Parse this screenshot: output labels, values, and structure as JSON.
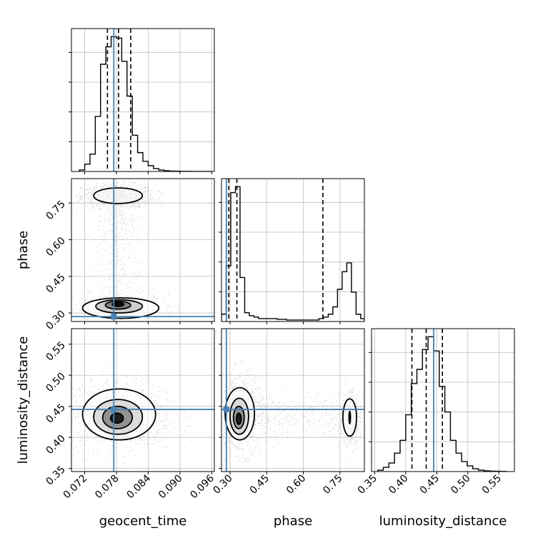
{
  "chart_data": {
    "type": "corner",
    "parameters": [
      "geocent_time",
      "phase",
      "luminosity_distance"
    ],
    "xlabels": [
      "geocent_time",
      "phase",
      "luminosity_distance"
    ],
    "ylabels": [
      "",
      "phase",
      "luminosity_distance"
    ],
    "ranges": {
      "geocent_time": [
        0.0695,
        0.0965
      ],
      "phase": [
        0.265,
        0.85
      ],
      "luminosity_distance": [
        0.345,
        0.575
      ]
    },
    "ticks": {
      "geocent_time": [
        "0.072",
        "0.078",
        "0.084",
        "0.090",
        "0.096"
      ],
      "phase": [
        "0.30",
        "0.45",
        "0.60",
        "0.75"
      ],
      "luminosity_distance": [
        "0.35",
        "0.40",
        "0.45",
        "0.50",
        "0.55"
      ]
    },
    "injection": {
      "geocent_time": 0.0775,
      "phase": 0.285,
      "luminosity_distance": 0.445
    },
    "quantiles": {
      "geocent_time": [
        0.0763,
        0.0784,
        0.0807
      ],
      "phase": [
        0.295,
        0.328,
        0.68
      ],
      "luminosity_distance": [
        0.41,
        0.433,
        0.459
      ]
    },
    "histograms": {
      "geocent_time": {
        "edges": [
          0.071,
          0.072,
          0.073,
          0.074,
          0.075,
          0.076,
          0.077,
          0.078,
          0.079,
          0.08,
          0.081,
          0.082,
          0.083,
          0.084,
          0.085,
          0.086,
          0.087,
          0.088,
          0.089,
          0.09,
          0.091,
          0.092,
          0.093,
          0.094,
          0.095,
          0.096
        ],
        "counts": [
          0.01,
          0.05,
          0.12,
          0.38,
          0.74,
          0.86,
          0.93,
          0.92,
          0.76,
          0.52,
          0.25,
          0.13,
          0.07,
          0.04,
          0.02,
          0.01,
          0.005,
          0.003,
          0.002,
          0.001,
          0.001,
          0,
          0,
          0,
          0
        ]
      },
      "phase": {
        "edges": [
          0.265,
          0.284,
          0.303,
          0.322,
          0.341,
          0.36,
          0.379,
          0.398,
          0.417,
          0.436,
          0.455,
          0.474,
          0.493,
          0.512,
          0.531,
          0.55,
          0.569,
          0.588,
          0.607,
          0.626,
          0.645,
          0.664,
          0.683,
          0.702,
          0.721,
          0.74,
          0.759,
          0.778,
          0.797,
          0.816,
          0.835,
          0.85
        ],
        "counts": [
          0.05,
          0.38,
          0.88,
          0.92,
          0.3,
          0.06,
          0.04,
          0.03,
          0.02,
          0.02,
          0.02,
          0.02,
          0.015,
          0.015,
          0.01,
          0.01,
          0.01,
          0.01,
          0.01,
          0.01,
          0.01,
          0.02,
          0.03,
          0.05,
          0.1,
          0.22,
          0.34,
          0.4,
          0.2,
          0.05,
          0.02
        ]
      },
      "luminosity_distance": {
        "edges": [
          0.355,
          0.364,
          0.373,
          0.382,
          0.391,
          0.4,
          0.409,
          0.418,
          0.427,
          0.436,
          0.445,
          0.454,
          0.463,
          0.472,
          0.481,
          0.49,
          0.499,
          0.508,
          0.517,
          0.526,
          0.535,
          0.544,
          0.553,
          0.562
        ],
        "counts": [
          0.01,
          0.03,
          0.06,
          0.13,
          0.22,
          0.4,
          0.62,
          0.72,
          0.86,
          0.95,
          0.85,
          0.6,
          0.42,
          0.22,
          0.13,
          0.07,
          0.04,
          0.02,
          0.01,
          0.005,
          0.003,
          0.002,
          0.001
        ]
      }
    },
    "contours": [
      {
        "x": "geocent_time",
        "y": "phase",
        "levels": [
          {
            "cx": 0.0783,
            "cy": 0.78,
            "rx": 0.0046,
            "ry": 0.032,
            "fill": "#ffffff",
            "stroke": "#000000"
          },
          {
            "cx": 0.0788,
            "cy": 0.32,
            "rx": 0.0072,
            "ry": 0.042,
            "fill": "#ffffff",
            "stroke": "#000000"
          },
          {
            "cx": 0.0785,
            "cy": 0.327,
            "rx": 0.0044,
            "ry": 0.027,
            "fill": "#c8c8c8",
            "stroke": "#000000"
          },
          {
            "cx": 0.0783,
            "cy": 0.332,
            "rx": 0.0024,
            "ry": 0.016,
            "fill": "#7a7a7a",
            "stroke": "#000000"
          },
          {
            "cx": 0.0783,
            "cy": 0.335,
            "rx": 0.0011,
            "ry": 0.008,
            "fill": "#000000",
            "stroke": "#000000"
          }
        ]
      },
      {
        "x": "geocent_time",
        "y": "luminosity_distance",
        "levels": [
          {
            "cx": 0.0785,
            "cy": 0.437,
            "rx": 0.0069,
            "ry": 0.041,
            "fill": "#ffffff",
            "stroke": "#000000"
          },
          {
            "cx": 0.0783,
            "cy": 0.433,
            "rx": 0.0046,
            "ry": 0.028,
            "fill": "#d8d8d8",
            "stroke": "#000000"
          },
          {
            "cx": 0.0782,
            "cy": 0.432,
            "rx": 0.0028,
            "ry": 0.018,
            "fill": "#8a8a8a",
            "stroke": "#000000"
          },
          {
            "cx": 0.0781,
            "cy": 0.431,
            "rx": 0.0012,
            "ry": 0.008,
            "fill": "#111111",
            "stroke": "#000000"
          }
        ]
      },
      {
        "x": "phase",
        "y": "luminosity_distance",
        "levels": [
          {
            "cx": 0.34,
            "cy": 0.438,
            "rx": 0.06,
            "ry": 0.042,
            "fill": "#ffffff",
            "stroke": "#000000"
          },
          {
            "cx": 0.338,
            "cy": 0.434,
            "rx": 0.038,
            "ry": 0.029,
            "fill": "#d5d5d5",
            "stroke": "#000000"
          },
          {
            "cx": 0.336,
            "cy": 0.432,
            "rx": 0.022,
            "ry": 0.018,
            "fill": "#8a8a8a",
            "stroke": "#000000"
          },
          {
            "cx": 0.336,
            "cy": 0.43,
            "rx": 0.01,
            "ry": 0.009,
            "fill": "#111111",
            "stroke": "#000000"
          },
          {
            "cx": 0.79,
            "cy": 0.432,
            "rx": 0.028,
            "ry": 0.03,
            "fill": "#ffffff",
            "stroke": "#000000"
          },
          {
            "cx": 0.79,
            "cy": 0.432,
            "rx": 0.003,
            "ry": 0.01,
            "fill": "#000000",
            "stroke": "#000000"
          }
        ]
      }
    ],
    "grid": true,
    "colors": {
      "injection": "#4682b4",
      "histogram": "#000000",
      "scatter": "#9a9a9a",
      "grid": "#bfbfbf"
    }
  }
}
